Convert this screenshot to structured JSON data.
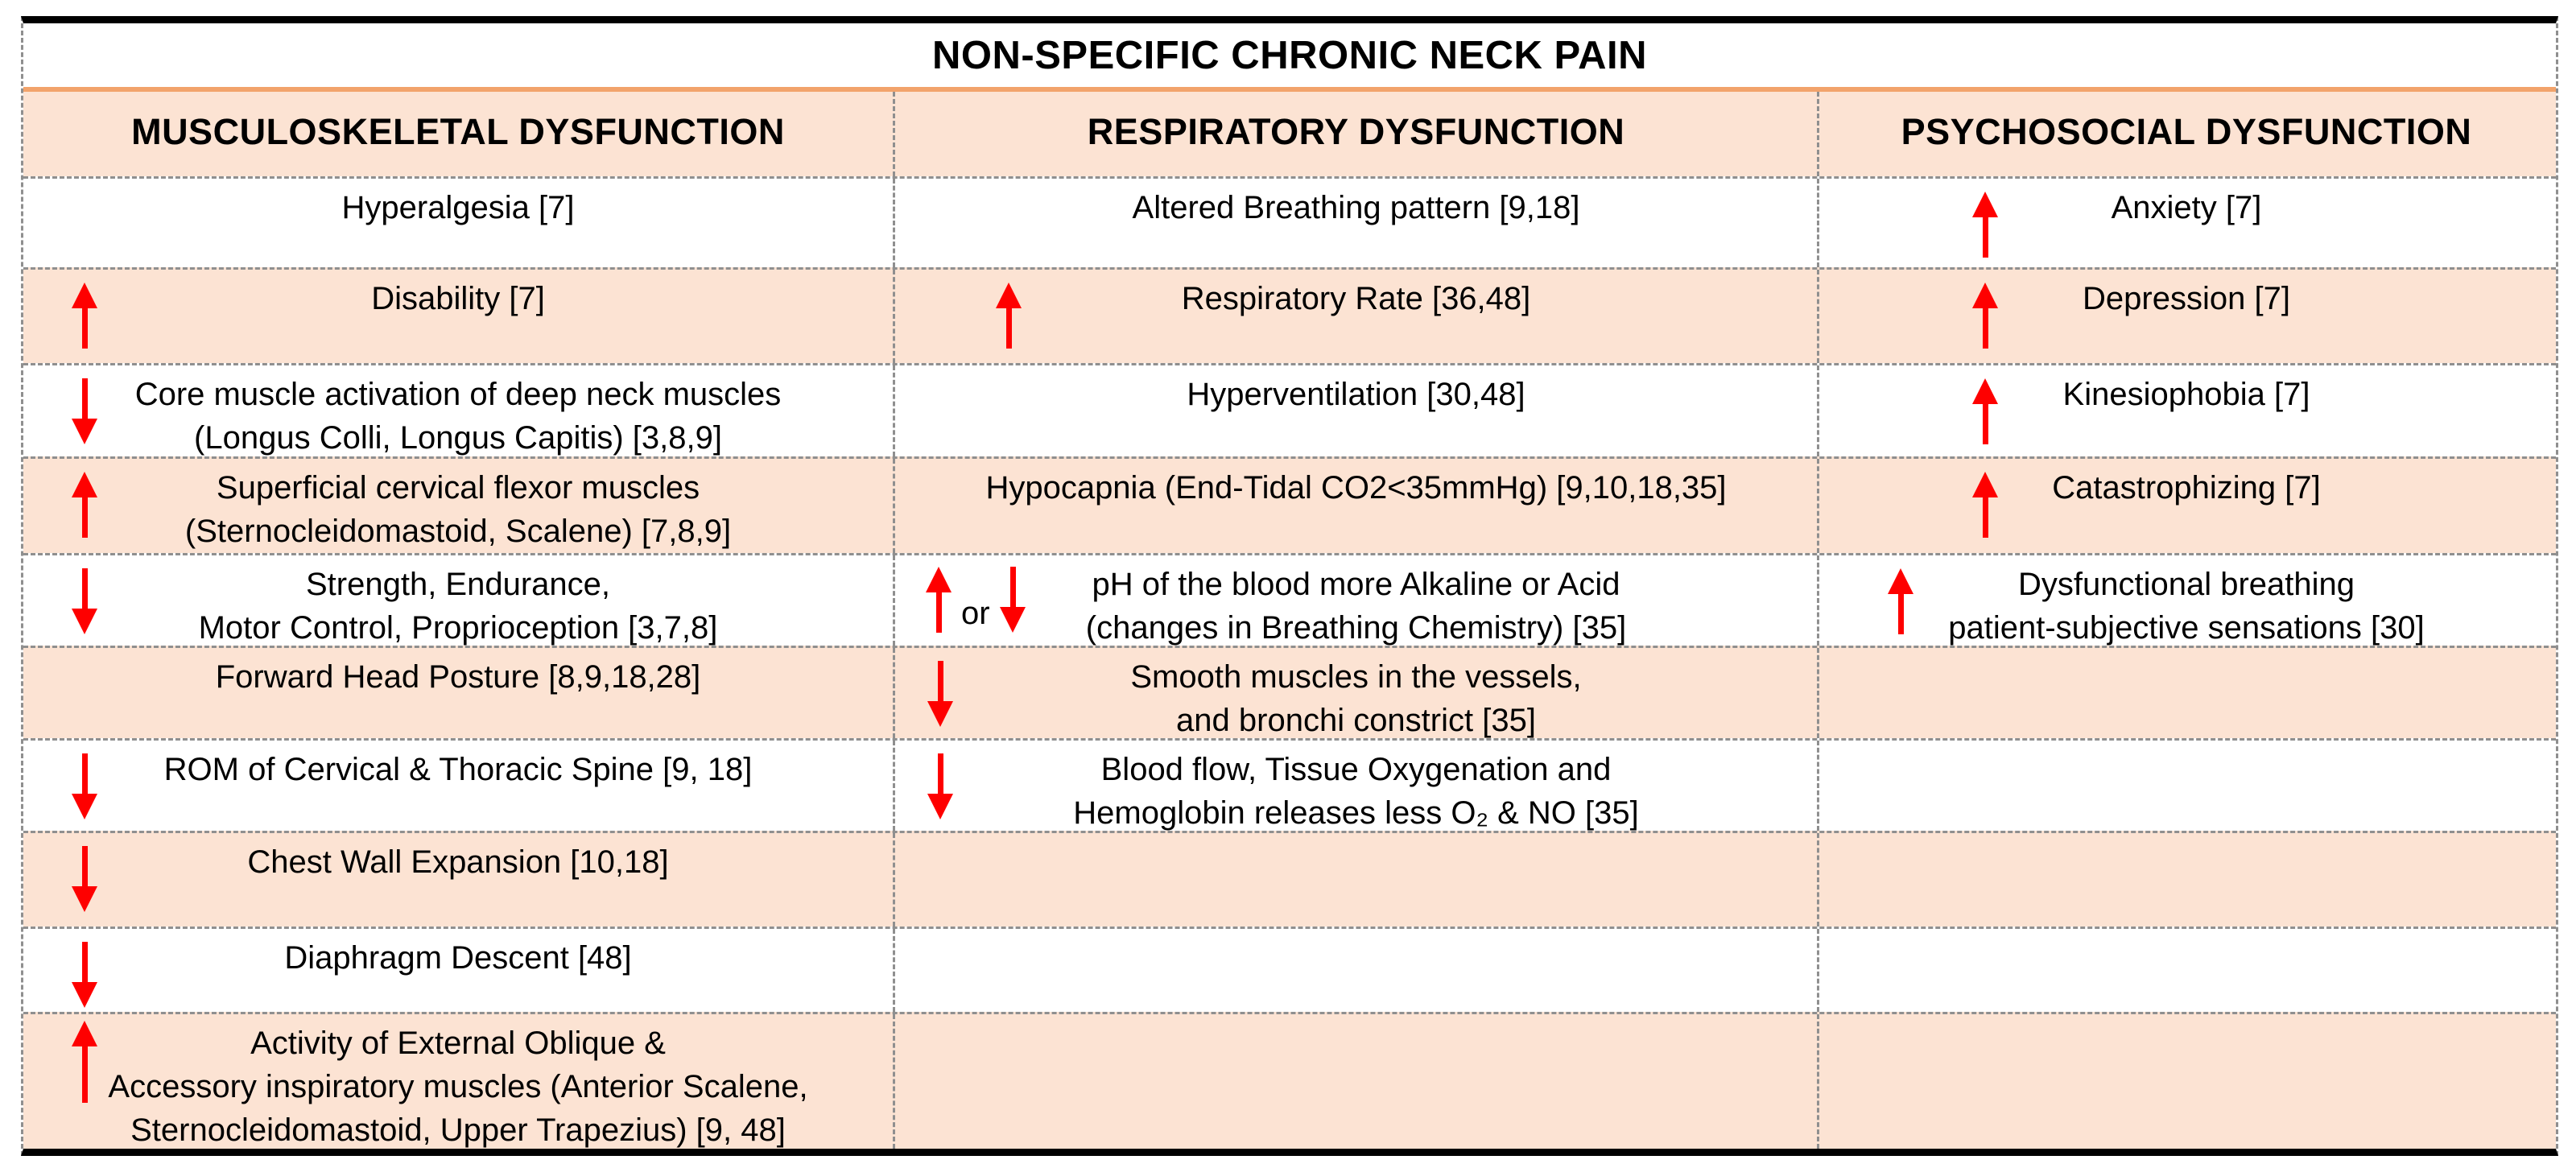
{
  "title": "NON-SPECIFIC CHRONIC NECK PAIN",
  "headers": {
    "musculoskeletal": "MUSCULOSKELETAL DYSFUNCTION",
    "respiratory": "RESPIRATORY DYSFUNCTION",
    "psychosocial": "PSYCHOSOCIAL DYSFUNCTION"
  },
  "or_label": "or",
  "colors": {
    "row_highlight": "#fce3d3",
    "accent_line": "#f2a36b",
    "arrow_red": "#fe0000",
    "border_gray": "#8f8f8f",
    "border_black": "#000000"
  },
  "rows": [
    {
      "c1": {
        "icon": null,
        "text": "Hyperalgesia [7]"
      },
      "c2": {
        "icon": null,
        "text": "Altered Breathing pattern [9,18]"
      },
      "c3": {
        "icon": "arrow-up",
        "text": "Anxiety [7]"
      }
    },
    {
      "c1": {
        "icon": "arrow-up",
        "text": "Disability [7]"
      },
      "c2": {
        "icon": "arrow-up",
        "text": "Respiratory Rate [36,48]"
      },
      "c3": {
        "icon": "arrow-up",
        "text": "Depression [7]"
      }
    },
    {
      "c1": {
        "icon": "arrow-down",
        "text": "Core muscle activation of deep neck muscles\n(Longus Colli, Longus Capitis) [3,8,9]"
      },
      "c2": {
        "icon": null,
        "text": "Hyperventilation [30,48]"
      },
      "c3": {
        "icon": "arrow-up",
        "text": "Kinesiophobia [7]"
      }
    },
    {
      "c1": {
        "icon": "arrow-up",
        "text": "Superficial cervical flexor muscles\n(Sternocleidomastoid, Scalene) [7,8,9]"
      },
      "c2": {
        "icon": null,
        "text": "Hypocapnia (End-Tidal CO2<35mmHg) [9,10,18,35]"
      },
      "c3": {
        "icon": "arrow-up",
        "text": "Catastrophizing [7]"
      }
    },
    {
      "c1": {
        "icon": "arrow-down",
        "text": "Strength, Endurance,\nMotor Control, Proprioception [3,7,8]"
      },
      "c2": {
        "icon": "arrow-up-or-down",
        "text": "pH of the blood more Alkaline or Acid\n(changes in Breathing Chemistry) [35]"
      },
      "c3": {
        "icon": "arrow-up",
        "text": "Dysfunctional breathing\npatient-subjective sensations [30]"
      }
    },
    {
      "c1": {
        "icon": null,
        "text": "Forward Head Posture [8,9,18,28]"
      },
      "c2": {
        "icon": "arrow-down",
        "text": "Smooth muscles in the vessels,\nand bronchi constrict [35]"
      }
    },
    {
      "c1": {
        "icon": "arrow-down",
        "text": "ROM of Cervical & Thoracic Spine [9, 18]"
      },
      "c2": {
        "icon": "arrow-down",
        "text": "Blood flow, Tissue Oxygenation and\nHemoglobin releases less O₂ & NO [35]"
      }
    },
    {
      "c1": {
        "icon": "arrow-down",
        "text": "Chest Wall Expansion [10,18]"
      }
    },
    {
      "c1": {
        "icon": "arrow-down",
        "text": "Diaphragm Descent [48]"
      }
    },
    {
      "c1": {
        "icon": "arrow-up",
        "text": "Activity of External Oblique &\nAccessory inspiratory muscles (Anterior Scalene,\nSternocleidomastoid, Upper Trapezius) [9, 48]"
      }
    }
  ]
}
